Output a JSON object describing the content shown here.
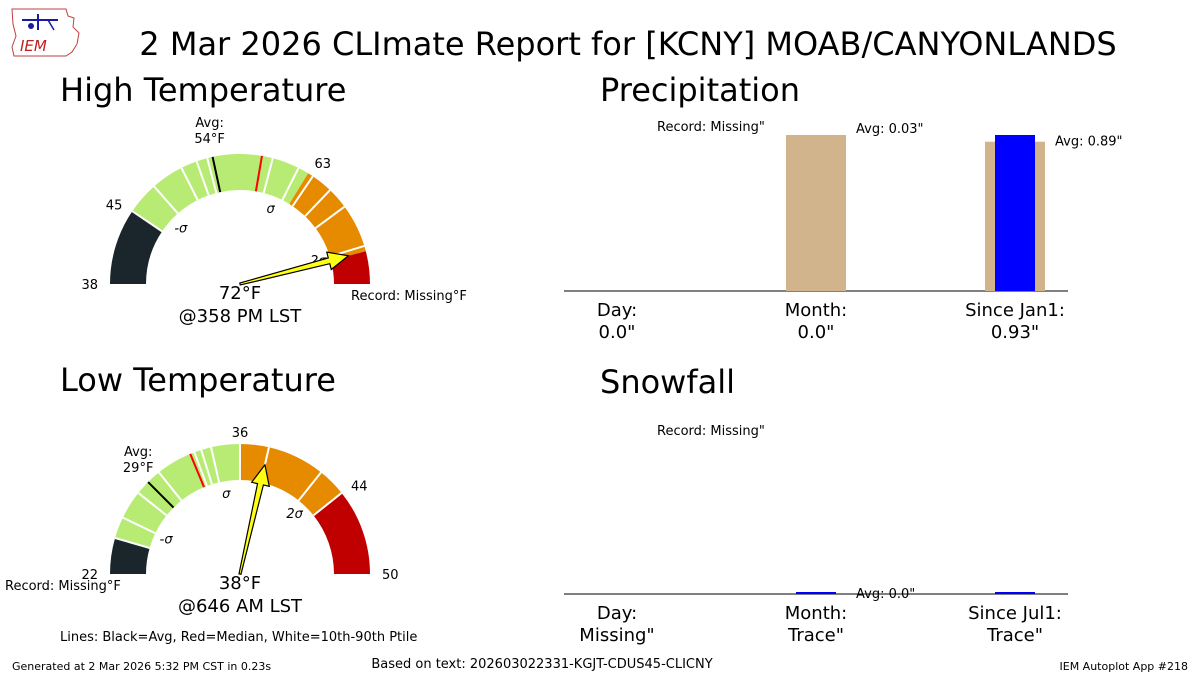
{
  "title": "2 Mar 2026 CLImate Report for [KCNY] MOAB/CANYONLANDS",
  "logo_text": "IEM",
  "footer": {
    "generated": "Generated at 2 Mar 2026 5:32 PM CST in 0.23s",
    "based_on": "Based on text: 202603022331-KGJT-CDUS45-CLICNY",
    "app": "IEM Autoplot App #218"
  },
  "legend_note": "Lines: Black=Avg, Red=Median, White=10th-90th Ptile",
  "colors": {
    "dark": "#1b262c",
    "light_green": "#b7eb74",
    "orange": "#e68a00",
    "red": "#c00000",
    "tan": "#d2b48c",
    "blue": "#0000ff",
    "arrow": "#ffff14",
    "median": "#ff0000"
  },
  "chart_data": [
    {
      "type": "gauge",
      "title": "High Temperature",
      "range": [
        38,
        75
      ],
      "bands": [
        {
          "from": 38,
          "to": 45,
          "color": "dark"
        },
        {
          "from": 45,
          "to": 63,
          "color": "light_green"
        },
        {
          "from": 63,
          "to": 72,
          "color": "orange"
        },
        {
          "from": 72,
          "to": 75,
          "color": "red"
        }
      ],
      "avg": 54,
      "avg_label": "Avg:",
      "avg_value_label": "54°F",
      "median": 58.5,
      "percentile_lines": [
        45,
        48,
        51,
        52.5,
        53.5,
        59.5,
        62,
        63.5,
        65.5,
        67.5,
        71.5
      ],
      "tick_labels": [
        {
          "value": 38,
          "label": "38"
        },
        {
          "value": 45,
          "label": "45"
        },
        {
          "value": 63,
          "label": "63"
        }
      ],
      "sigma_labels": [
        {
          "value": 47,
          "label": "-σ"
        },
        {
          "value": 61,
          "label": "σ"
        },
        {
          "value": 71.5,
          "label": "2σ"
        }
      ],
      "observed": 72,
      "observed_label": "72°F",
      "time_label": "@358 PM LST",
      "record_label": "Record: Missing°F"
    },
    {
      "type": "gauge",
      "title": "Low Temperature",
      "range": [
        22,
        50
      ],
      "bands": [
        {
          "from": 22,
          "to": 24.5,
          "color": "dark"
        },
        {
          "from": 24.5,
          "to": 36,
          "color": "light_green"
        },
        {
          "from": 36,
          "to": 44,
          "color": "orange"
        },
        {
          "from": 44,
          "to": 50,
          "color": "red"
        }
      ],
      "avg": 29,
      "avg_label": "Avg:",
      "avg_value_label": "29°F",
      "median": 32.5,
      "percentile_lines": [
        24.5,
        26,
        28,
        30,
        32.8,
        33.3,
        34,
        36,
        38,
        42,
        44
      ],
      "tick_labels": [
        {
          "value": 22,
          "label": "22"
        },
        {
          "value": 36,
          "label": "36"
        },
        {
          "value": 44,
          "label": "44"
        },
        {
          "value": 50,
          "label": "50"
        }
      ],
      "sigma_labels": [
        {
          "value": 26,
          "label": "-σ"
        },
        {
          "value": 34.5,
          "label": "σ"
        },
        {
          "value": 42.5,
          "label": "2σ"
        }
      ],
      "observed": 38,
      "observed_label": "38°F",
      "time_label": "@646 AM LST",
      "record_label": "Record: Missing°F"
    },
    {
      "type": "bar",
      "title": "Precipitation",
      "categories": [
        "Day:",
        "Month:",
        "Since Jan1:"
      ],
      "value_labels": [
        "0.0\"",
        "0.0\"",
        "0.93\""
      ],
      "values": [
        0.0,
        0.0,
        0.93
      ],
      "averages": [
        null,
        0.03,
        0.89
      ],
      "avg_labels": [
        "",
        "Avg: 0.03\"",
        "Avg: 0.89\""
      ],
      "normalized_to": [
        1,
        0.03,
        0.93
      ],
      "record_label": "Record: Missing\""
    },
    {
      "type": "bar",
      "title": "Snowfall",
      "categories": [
        "Day:",
        "Month:",
        "Since Jul1:"
      ],
      "value_labels": [
        "Missing\"",
        "Trace\"",
        "Trace\""
      ],
      "values": [
        null,
        0.0001,
        0.0001
      ],
      "averages": [
        null,
        0.0,
        null
      ],
      "avg_labels": [
        "",
        "Avg: 0.0\"",
        ""
      ],
      "normalized_to": [
        1,
        1,
        1
      ],
      "record_label": "Record: Missing\""
    }
  ]
}
